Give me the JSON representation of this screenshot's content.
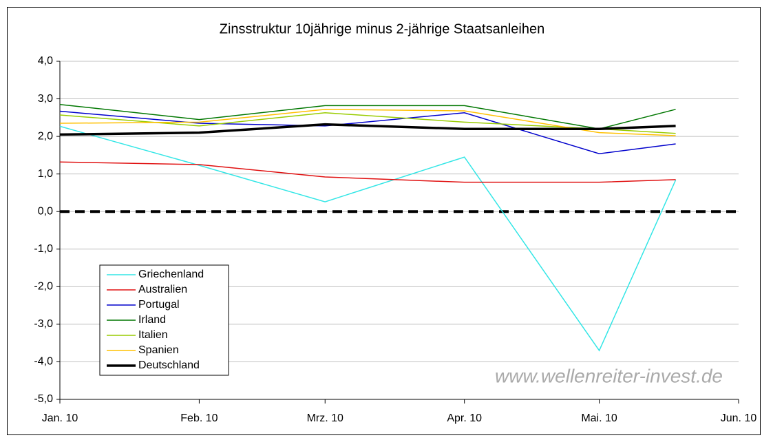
{
  "chart_data": {
    "type": "line",
    "title": "Zinsstruktur 10jährige minus 2-jährige Staatsanleihen",
    "watermark": "www.wellenreiter-invest.de",
    "x": [
      0,
      31,
      59,
      90,
      120,
      137
    ],
    "xlim": [
      0,
      151
    ],
    "xticks": [
      {
        "value": 0,
        "label": "Jan. 10"
      },
      {
        "value": 31,
        "label": "Feb. 10"
      },
      {
        "value": 59,
        "label": "Mrz. 10"
      },
      {
        "value": 90,
        "label": "Apr. 10"
      },
      {
        "value": 120,
        "label": "Mai. 10"
      },
      {
        "value": 151,
        "label": "Jun. 10"
      }
    ],
    "ylim": [
      -5,
      4
    ],
    "yticks": [
      {
        "value": -5,
        "label": "-5,0"
      },
      {
        "value": -4,
        "label": "-4,0"
      },
      {
        "value": -3,
        "label": "-3,0"
      },
      {
        "value": -2,
        "label": "-2,0"
      },
      {
        "value": -1,
        "label": "-1,0"
      },
      {
        "value": 0,
        "label": "0,0"
      },
      {
        "value": 1,
        "label": "1,0"
      },
      {
        "value": 2,
        "label": "2,0"
      },
      {
        "value": 3,
        "label": "3,0"
      },
      {
        "value": 4,
        "label": "4,0"
      }
    ],
    "grid": true,
    "legend": "lower left",
    "series": [
      {
        "name": "Griechenland",
        "color": "#33e6e6",
        "values": [
          2.27,
          1.23,
          0.26,
          1.45,
          -3.7,
          0.84
        ]
      },
      {
        "name": "Australien",
        "color": "#e01010",
        "values": [
          1.32,
          1.25,
          0.92,
          0.78,
          0.78,
          0.85
        ]
      },
      {
        "name": "Portugal",
        "color": "#0000cc",
        "values": [
          2.67,
          2.35,
          2.28,
          2.63,
          1.54,
          1.8
        ]
      },
      {
        "name": "Irland",
        "color": "#007700",
        "values": [
          2.85,
          2.45,
          2.82,
          2.82,
          2.2,
          2.72
        ]
      },
      {
        "name": "Italien",
        "color": "#99cc00",
        "values": [
          2.57,
          2.28,
          2.63,
          2.38,
          2.2,
          2.08
        ]
      },
      {
        "name": "Spanien",
        "color": "#ffc000",
        "values": [
          2.35,
          2.38,
          2.72,
          2.68,
          2.1,
          2.02
        ]
      },
      {
        "name": "Deutschland",
        "color": "#000000",
        "values": [
          2.05,
          2.1,
          2.32,
          2.2,
          2.2,
          2.28
        ]
      }
    ]
  }
}
